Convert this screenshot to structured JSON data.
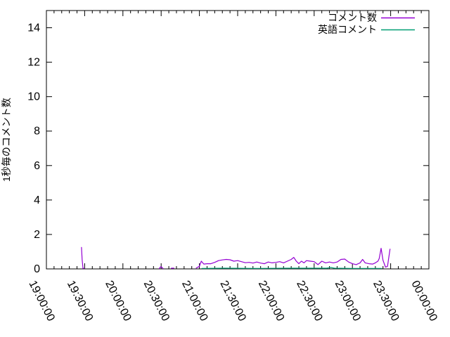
{
  "chart_data": {
    "type": "line",
    "title": "",
    "xlabel": "",
    "ylabel": "1秒毎のコメント数",
    "grid": false,
    "legend_position": "top-right-inside",
    "ylim": [
      0,
      15
    ],
    "y_ticks": [
      0,
      2,
      4,
      6,
      8,
      10,
      12,
      14
    ],
    "x_ticks": [
      "19:00:00",
      "19:30:00",
      "20:00:00",
      "20:30:00",
      "21:00:00",
      "21:30:00",
      "22:00:00",
      "22:30:00",
      "23:00:00",
      "23:30:00",
      "00:00:00"
    ],
    "x_range_hours": [
      19,
      24
    ],
    "x_major_interval_minutes": 30,
    "x_minor_interval_minutes": 6,
    "axis_color": "#000000",
    "background_color": "#ffffff",
    "series": [
      {
        "name": "コメント数",
        "color": "#9400d3",
        "segments": [
          [
            [
              "19:27:30",
              1.25
            ],
            [
              "19:28:00",
              0.55
            ],
            [
              "19:28:40",
              0.05
            ],
            [
              "19:29:40",
              0.02
            ]
          ],
          [
            [
              "20:28:30",
              0.02
            ],
            [
              "20:29:30",
              0.12
            ],
            [
              "20:30:30",
              0.1
            ],
            [
              "20:31:30",
              0.02
            ]
          ],
          [
            [
              "20:38:00",
              0.04
            ],
            [
              "20:40:00",
              0.04
            ]
          ],
          [
            [
              "20:57:30",
              0.05
            ],
            [
              "21:00:00",
              0.15
            ],
            [
              "21:01:30",
              0.45
            ],
            [
              "21:03:30",
              0.28
            ],
            [
              "21:06:00",
              0.3
            ],
            [
              "21:09:00",
              0.3
            ],
            [
              "21:12:00",
              0.38
            ],
            [
              "21:15:00",
              0.48
            ],
            [
              "21:18:00",
              0.52
            ],
            [
              "21:21:00",
              0.55
            ],
            [
              "21:24:00",
              0.53
            ],
            [
              "21:27:00",
              0.45
            ],
            [
              "21:30:00",
              0.48
            ],
            [
              "21:33:00",
              0.42
            ],
            [
              "21:36:00",
              0.36
            ],
            [
              "21:39:00",
              0.38
            ],
            [
              "21:42:00",
              0.34
            ],
            [
              "21:45:00",
              0.4
            ],
            [
              "21:48:00",
              0.34
            ],
            [
              "21:51:00",
              0.3
            ],
            [
              "21:54:00",
              0.4
            ],
            [
              "21:57:00",
              0.35
            ],
            [
              "22:00:00",
              0.38
            ],
            [
              "22:03:00",
              0.42
            ],
            [
              "22:06:00",
              0.35
            ],
            [
              "22:09:00",
              0.45
            ],
            [
              "22:12:00",
              0.55
            ],
            [
              "22:14:00",
              0.67
            ],
            [
              "22:16:00",
              0.45
            ],
            [
              "22:18:00",
              0.3
            ],
            [
              "22:20:00",
              0.45
            ],
            [
              "22:22:00",
              0.35
            ],
            [
              "22:24:00",
              0.48
            ],
            [
              "22:27:00",
              0.45
            ],
            [
              "22:30:00",
              0.42
            ],
            [
              "22:33:00",
              0.25
            ],
            [
              "22:36:00",
              0.45
            ],
            [
              "22:39:00",
              0.35
            ],
            [
              "22:42:00",
              0.4
            ],
            [
              "22:45:00",
              0.35
            ],
            [
              "22:48:00",
              0.4
            ],
            [
              "22:51:00",
              0.55
            ],
            [
              "22:54:00",
              0.57
            ],
            [
              "22:57:00",
              0.4
            ],
            [
              "23:00:00",
              0.3
            ],
            [
              "23:03:00",
              0.25
            ],
            [
              "23:06:00",
              0.35
            ],
            [
              "23:08:00",
              0.55
            ],
            [
              "23:10:00",
              0.35
            ],
            [
              "23:13:00",
              0.3
            ],
            [
              "23:16:00",
              0.28
            ],
            [
              "23:18:00",
              0.35
            ],
            [
              "23:20:00",
              0.45
            ],
            [
              "23:21:00",
              0.6
            ],
            [
              "23:22:30",
              1.2
            ],
            [
              "23:24:00",
              0.5
            ],
            [
              "23:26:00",
              0.1
            ],
            [
              "23:27:30",
              0.15
            ],
            [
              "23:29:30",
              1.15
            ]
          ]
        ]
      },
      {
        "name": "英語コメント",
        "color": "#009e73",
        "segments": [
          [
            [
              "21:02:00",
              0.03
            ],
            [
              "21:20:00",
              0.04
            ],
            [
              "21:45:00",
              0.03
            ],
            [
              "22:10:00",
              0.04
            ],
            [
              "22:40:00",
              0.04
            ],
            [
              "22:43:00",
              0.08
            ],
            [
              "22:46:00",
              0.04
            ],
            [
              "23:00:00",
              0.03
            ],
            [
              "23:23:00",
              0.03
            ]
          ]
        ]
      }
    ]
  }
}
